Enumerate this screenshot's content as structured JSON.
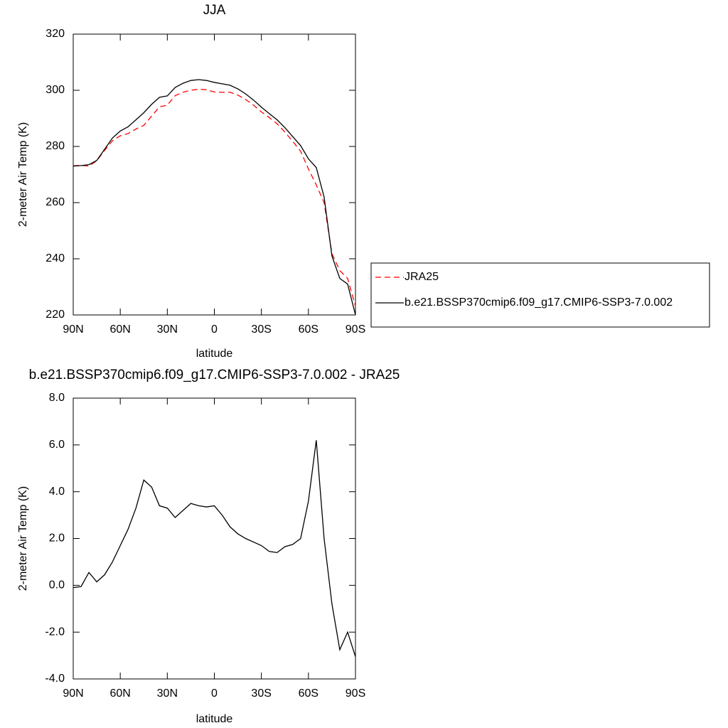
{
  "chart_data": [
    {
      "type": "line",
      "title": "JJA",
      "xlabel": "latitude",
      "ylabel": "2-meter Air Temp (K)",
      "x": [
        90,
        85,
        80,
        75,
        70,
        65,
        60,
        55,
        50,
        45,
        40,
        35,
        30,
        25,
        20,
        15,
        10,
        5,
        0,
        -5,
        -10,
        -15,
        -20,
        -25,
        -30,
        -35,
        -40,
        -45,
        -50,
        -55,
        -60,
        -65,
        -70,
        -75,
        -80,
        -85,
        -90
      ],
      "series": [
        {
          "name": "JRA25",
          "color": "#ff0000",
          "dashed": true,
          "values": [
            273.1,
            273.3,
            273.0,
            274.9,
            278.6,
            282.0,
            283.8,
            284.6,
            286.2,
            287.5,
            290.8,
            294.1,
            294.7,
            298.1,
            299.3,
            300.0,
            300.4,
            300.2,
            299.4,
            299.3,
            299.3,
            298.3,
            296.7,
            294.7,
            292.3,
            290.3,
            288.1,
            285.1,
            281.8,
            278.3,
            272.0,
            266.3,
            260.0,
            241.8,
            235.8,
            233.0,
            223.1
          ]
        },
        {
          "name": "b.e21.BSSP370cmip6.f09_g17.CMIP6-SSP3-7.0.002",
          "color": "#000000",
          "dashed": false,
          "values": [
            273.0,
            273.2,
            273.5,
            275.0,
            279.0,
            283.0,
            285.5,
            287.0,
            289.5,
            292.0,
            295.0,
            297.5,
            298.0,
            301.0,
            302.5,
            303.5,
            303.8,
            303.5,
            302.8,
            302.3,
            301.8,
            300.5,
            298.7,
            296.5,
            294.0,
            291.7,
            289.5,
            286.7,
            283.5,
            280.3,
            275.6,
            272.5,
            262.0,
            241.0,
            233.0,
            231.0,
            220.0
          ]
        }
      ],
      "xlim": [
        90,
        -90
      ],
      "xticks": [
        {
          "value": 90,
          "label": "90N"
        },
        {
          "value": 60,
          "label": "60N"
        },
        {
          "value": 30,
          "label": "30N"
        },
        0,
        {
          "value": -30,
          "label": "30S"
        },
        {
          "value": -60,
          "label": "60S"
        },
        {
          "value": -90,
          "label": "90S"
        }
      ],
      "ylim": [
        220,
        320
      ],
      "yticks": [
        220,
        240,
        260,
        280,
        300,
        320
      ],
      "legend": "right"
    },
    {
      "type": "line",
      "title": "b.e21.BSSP370cmip6.f09_g17.CMIP6-SSP3-7.0.002 - JRA25",
      "xlabel": "latitude",
      "ylabel": "2-meter Air Temp (K)",
      "x": [
        90,
        85,
        80,
        75,
        70,
        65,
        60,
        55,
        50,
        45,
        40,
        35,
        30,
        25,
        20,
        15,
        10,
        5,
        0,
        -5,
        -10,
        -15,
        -20,
        -25,
        -30,
        -35,
        -40,
        -45,
        -50,
        -55,
        -60,
        -65,
        -70,
        -75,
        -80,
        -85,
        -90
      ],
      "values": [
        -0.1,
        -0.05,
        0.55,
        0.15,
        0.45,
        1.0,
        1.7,
        2.4,
        3.3,
        4.5,
        4.2,
        3.4,
        3.3,
        2.9,
        3.2,
        3.5,
        3.4,
        3.35,
        3.4,
        3.0,
        2.5,
        2.2,
        2.0,
        1.85,
        1.7,
        1.45,
        1.4,
        1.65,
        1.75,
        2.0,
        3.6,
        6.2,
        2.0,
        -0.8,
        -2.75,
        -2.0,
        -3.05
      ],
      "color": "#000000",
      "xlim": [
        90,
        -90
      ],
      "xticks": [
        {
          "value": 90,
          "label": "90N"
        },
        {
          "value": 60,
          "label": "60N"
        },
        {
          "value": 30,
          "label": "30N"
        },
        0,
        {
          "value": -30,
          "label": "30S"
        },
        {
          "value": -60,
          "label": "60S"
        },
        {
          "value": -90,
          "label": "90S"
        }
      ],
      "ylim": [
        -4,
        8
      ],
      "yticks": [
        {
          "value": -4,
          "label": "-4.0"
        },
        {
          "value": -2,
          "label": "-2.0"
        },
        {
          "value": 0,
          "label": "0.0"
        },
        {
          "value": 2,
          "label": "2.0"
        },
        {
          "value": 4,
          "label": "4.0"
        },
        {
          "value": 6,
          "label": "6.0"
        },
        {
          "value": 8,
          "label": "8.0"
        }
      ]
    }
  ]
}
